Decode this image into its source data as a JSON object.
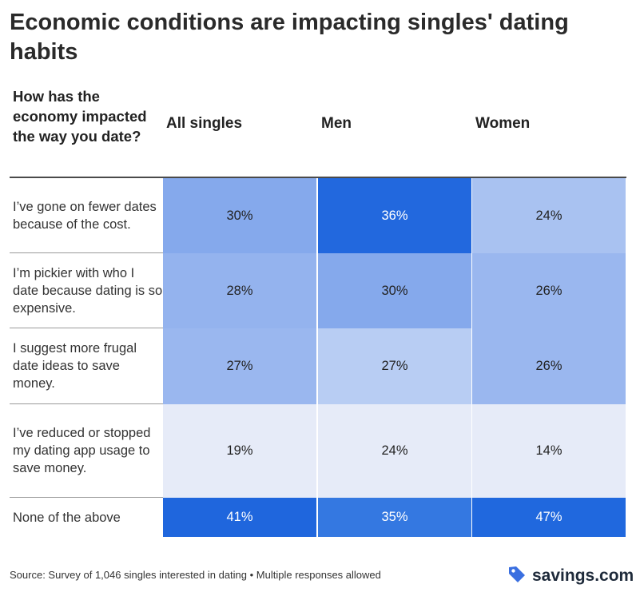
{
  "title": "Economic conditions are impacting singles' dating habits",
  "chart_data": {
    "type": "table",
    "title": "Economic conditions are impacting singles' dating habits",
    "row_header": "How has the economy impacted the way you date?",
    "columns": [
      "All singles",
      "Men",
      "Women"
    ],
    "rows": [
      {
        "label": "I’ve gone on fewer dates because of the cost.",
        "values": [
          30,
          36,
          24
        ],
        "display": [
          "30%",
          "36%",
          "24%"
        ]
      },
      {
        "label": "I’m pickier with who I date because dating is so expensive.",
        "values": [
          28,
          30,
          26
        ],
        "display": [
          "28%",
          "30%",
          "26%"
        ]
      },
      {
        "label": "I suggest more frugal date ideas to save money.",
        "values": [
          27,
          27,
          26
        ],
        "display": [
          "27%",
          "27%",
          "26%"
        ]
      },
      {
        "label": "I’ve reduced or stopped my dating app usage to save money.",
        "values": [
          19,
          24,
          14
        ],
        "display": [
          "19%",
          "24%",
          "14%"
        ]
      },
      {
        "label": "None of the above",
        "values": [
          41,
          35,
          47
        ],
        "display": [
          "41%",
          "35%",
          "47%"
        ]
      }
    ],
    "cell_colors": [
      [
        "#85a9ec",
        "#2268de",
        "#a9c2f1"
      ],
      [
        "#94b3ee",
        "#85a9ec",
        "#9ab7ef"
      ],
      [
        "#9ab7ef",
        "#b8cdf3",
        "#9ab7ef"
      ],
      [
        "#e6ebf8",
        "#e6ebf8",
        "#e6ebf8"
      ],
      [
        "#1f66dd",
        "#3478e1",
        "#2068de"
      ]
    ]
  },
  "footer": {
    "source": "Source: Survey of 1,046 singles interested in dating • Multiple responses allowed",
    "brand": "savings.com",
    "brand_color": "#3a6fe0"
  }
}
